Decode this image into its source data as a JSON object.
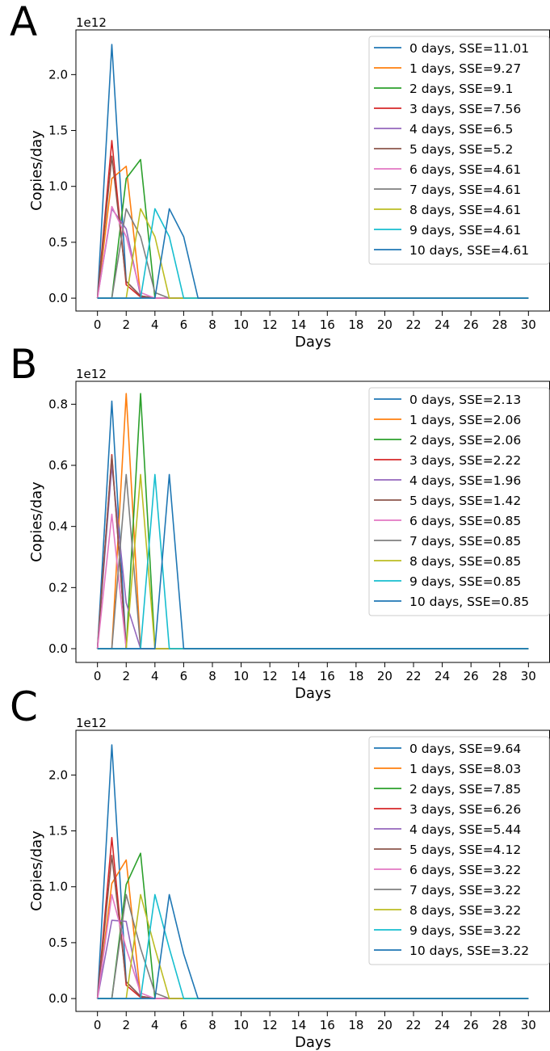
{
  "panels": [
    {
      "label": "A"
    },
    {
      "label": "B"
    },
    {
      "label": "C"
    }
  ],
  "colors": [
    "#1f77b4",
    "#ff7f0e",
    "#2ca02c",
    "#d62728",
    "#9467bd",
    "#8c564b",
    "#e377c2",
    "#7f7f7f",
    "#bcbd22",
    "#17becf",
    "#1f77b4"
  ],
  "chart_data": [
    {
      "type": "line",
      "panel": "A",
      "xlabel": "Days",
      "ylabel": "Copies/day",
      "y_offset_label": "1e12",
      "xlim": [
        -1.5,
        31.5
      ],
      "ylim": [
        -0.115,
        2.4
      ],
      "xticks": [
        0,
        2,
        4,
        6,
        8,
        10,
        12,
        14,
        16,
        18,
        20,
        22,
        24,
        26,
        28,
        30
      ],
      "yticks": [
        0.0,
        0.5,
        1.0,
        1.5,
        2.0
      ],
      "grid": false,
      "legend_position": "upper right",
      "series": [
        {
          "name": "0 days, SSE=11.01",
          "x": [
            0,
            1,
            2,
            3,
            4,
            30
          ],
          "y": [
            0,
            2.27,
            0.15,
            0.02,
            0,
            0
          ]
        },
        {
          "name": "1 days, SSE=9.27",
          "x": [
            0,
            1,
            2,
            3,
            4,
            30
          ],
          "y": [
            0,
            1.07,
            1.18,
            0.02,
            0,
            0
          ]
        },
        {
          "name": "2 days, SSE=9.1",
          "x": [
            0,
            1,
            2,
            3,
            4,
            30
          ],
          "y": [
            0,
            0,
            1.07,
            1.24,
            0,
            0
          ]
        },
        {
          "name": "3 days, SSE=7.56",
          "x": [
            0,
            1,
            2,
            3,
            4,
            30
          ],
          "y": [
            0,
            1.41,
            0.12,
            0.01,
            0,
            0
          ]
        },
        {
          "name": "4 days, SSE=6.5",
          "x": [
            0,
            1,
            2,
            3,
            4,
            30
          ],
          "y": [
            0,
            0.8,
            0.62,
            0.02,
            0,
            0
          ]
        },
        {
          "name": "5 days, SSE=5.2",
          "x": [
            0,
            1,
            2,
            3,
            4,
            30
          ],
          "y": [
            0,
            1.27,
            0.15,
            0.02,
            0,
            0
          ]
        },
        {
          "name": "6 days, SSE=4.61",
          "x": [
            0,
            1,
            2,
            3,
            4,
            30
          ],
          "y": [
            0,
            0.82,
            0.55,
            0.05,
            0,
            0
          ]
        },
        {
          "name": "7 days, SSE=4.61",
          "x": [
            0,
            1,
            2,
            3,
            4,
            5,
            30
          ],
          "y": [
            0,
            0,
            0.8,
            0.55,
            0.05,
            0,
            0
          ]
        },
        {
          "name": "8 days, SSE=4.61",
          "x": [
            0,
            1,
            2,
            3,
            4,
            5,
            30
          ],
          "y": [
            0,
            0,
            0,
            0.8,
            0.55,
            0,
            0
          ]
        },
        {
          "name": "9 days, SSE=4.61",
          "x": [
            0,
            1,
            2,
            3,
            4,
            5,
            6,
            30
          ],
          "y": [
            0,
            0,
            0,
            0,
            0.8,
            0.55,
            0,
            0
          ]
        },
        {
          "name": "10 days, SSE=4.61",
          "x": [
            0,
            1,
            2,
            3,
            4,
            5,
            6,
            7,
            30
          ],
          "y": [
            0,
            0,
            0,
            0,
            0,
            0.8,
            0.55,
            0,
            0
          ]
        }
      ]
    },
    {
      "type": "line",
      "panel": "B",
      "xlabel": "Days",
      "ylabel": "Copies/day",
      "y_offset_label": "1e12",
      "xlim": [
        -1.5,
        31.5
      ],
      "ylim": [
        -0.045,
        0.875
      ],
      "xticks": [
        0,
        2,
        4,
        6,
        8,
        10,
        12,
        14,
        16,
        18,
        20,
        22,
        24,
        26,
        28,
        30
      ],
      "yticks": [
        0.0,
        0.2,
        0.4,
        0.6,
        0.8
      ],
      "grid": false,
      "legend_position": "upper right",
      "series": [
        {
          "name": "0 days, SSE=2.13",
          "x": [
            0,
            1,
            2,
            30
          ],
          "y": [
            0,
            0.81,
            0,
            0
          ]
        },
        {
          "name": "1 days, SSE=2.06",
          "x": [
            0,
            1,
            2,
            3,
            30
          ],
          "y": [
            0,
            0,
            0.835,
            0,
            0
          ]
        },
        {
          "name": "2 days, SSE=2.06",
          "x": [
            0,
            1,
            2,
            3,
            4,
            30
          ],
          "y": [
            0,
            0,
            0,
            0.835,
            0,
            0
          ]
        },
        {
          "name": "3 days, SSE=2.22",
          "x": [
            0,
            1,
            2,
            30
          ],
          "y": [
            0,
            0.635,
            0,
            0
          ]
        },
        {
          "name": "4 days, SSE=1.96",
          "x": [
            0,
            1,
            2,
            3,
            30
          ],
          "y": [
            0,
            0.6,
            0.15,
            0,
            0
          ]
        },
        {
          "name": "5 days, SSE=1.42",
          "x": [
            0,
            1,
            2,
            30
          ],
          "y": [
            0,
            0.63,
            0,
            0
          ]
        },
        {
          "name": "6 days, SSE=0.85",
          "x": [
            0,
            1,
            2,
            30
          ],
          "y": [
            0,
            0.44,
            0,
            0
          ]
        },
        {
          "name": "7 days, SSE=0.85",
          "x": [
            0,
            1,
            2,
            3,
            30
          ],
          "y": [
            0,
            0,
            0.57,
            0,
            0
          ]
        },
        {
          "name": "8 days, SSE=0.85",
          "x": [
            0,
            1,
            2,
            3,
            4,
            30
          ],
          "y": [
            0,
            0,
            0,
            0.57,
            0,
            0
          ]
        },
        {
          "name": "9 days, SSE=0.85",
          "x": [
            0,
            1,
            2,
            3,
            4,
            5,
            30
          ],
          "y": [
            0,
            0,
            0,
            0,
            0.57,
            0,
            0
          ]
        },
        {
          "name": "10 days, SSE=0.85",
          "x": [
            0,
            1,
            2,
            3,
            4,
            5,
            6,
            30
          ],
          "y": [
            0,
            0,
            0,
            0,
            0,
            0.57,
            0,
            0
          ]
        }
      ]
    },
    {
      "type": "line",
      "panel": "C",
      "xlabel": "Days",
      "ylabel": "Copies/day",
      "y_offset_label": "1e12",
      "xlim": [
        -1.5,
        31.5
      ],
      "ylim": [
        -0.115,
        2.4
      ],
      "xticks": [
        0,
        2,
        4,
        6,
        8,
        10,
        12,
        14,
        16,
        18,
        20,
        22,
        24,
        26,
        28,
        30
      ],
      "yticks": [
        0.0,
        0.5,
        1.0,
        1.5,
        2.0
      ],
      "grid": false,
      "legend_position": "upper right",
      "series": [
        {
          "name": "0 days, SSE=9.64",
          "x": [
            0,
            1,
            2,
            3,
            4,
            30
          ],
          "y": [
            0,
            2.27,
            0.15,
            0.02,
            0,
            0
          ]
        },
        {
          "name": "1 days, SSE=8.03",
          "x": [
            0,
            1,
            2,
            3,
            4,
            30
          ],
          "y": [
            0,
            1.03,
            1.24,
            0.02,
            0,
            0
          ]
        },
        {
          "name": "2 days, SSE=7.85",
          "x": [
            0,
            1,
            2,
            3,
            4,
            30
          ],
          "y": [
            0,
            0,
            1.02,
            1.3,
            0,
            0
          ]
        },
        {
          "name": "3 days, SSE=6.26",
          "x": [
            0,
            1,
            2,
            3,
            4,
            30
          ],
          "y": [
            0,
            1.44,
            0.12,
            0.01,
            0,
            0
          ]
        },
        {
          "name": "4 days, SSE=5.44",
          "x": [
            0,
            1,
            2,
            3,
            4,
            30
          ],
          "y": [
            0,
            0.7,
            0.69,
            0.02,
            0,
            0
          ]
        },
        {
          "name": "5 days, SSE=4.12",
          "x": [
            0,
            1,
            2,
            3,
            4,
            30
          ],
          "y": [
            0,
            1.28,
            0.15,
            0.02,
            0,
            0
          ]
        },
        {
          "name": "6 days, SSE=3.22",
          "x": [
            0,
            1,
            2,
            3,
            4,
            30
          ],
          "y": [
            0,
            0.93,
            0.45,
            0.05,
            0,
            0
          ]
        },
        {
          "name": "7 days, SSE=3.22",
          "x": [
            0,
            1,
            2,
            3,
            4,
            5,
            30
          ],
          "y": [
            0,
            0,
            0.93,
            0.45,
            0.05,
            0,
            0
          ]
        },
        {
          "name": "8 days, SSE=3.22",
          "x": [
            0,
            1,
            2,
            3,
            4,
            5,
            30
          ],
          "y": [
            0,
            0,
            0,
            0.93,
            0.45,
            0,
            0
          ]
        },
        {
          "name": "9 days, SSE=3.22",
          "x": [
            0,
            1,
            2,
            3,
            4,
            5,
            6,
            30
          ],
          "y": [
            0,
            0,
            0,
            0,
            0.93,
            0.45,
            0,
            0
          ]
        },
        {
          "name": "10 days, SSE=3.22",
          "x": [
            0,
            1,
            2,
            3,
            4,
            5,
            6,
            7,
            30
          ],
          "y": [
            0,
            0,
            0,
            0,
            0,
            0.93,
            0.4,
            0,
            0
          ]
        }
      ]
    }
  ]
}
